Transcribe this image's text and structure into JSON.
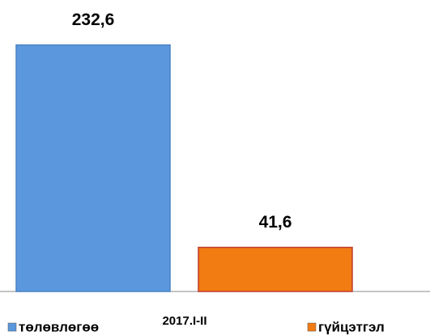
{
  "chart_data": {
    "type": "bar",
    "categories": [
      "2017.I-II"
    ],
    "series": [
      {
        "name": "төлөвлөгөө",
        "color": "#5a97dd",
        "values": [
          232.6
        ],
        "value_labels": [
          "232,6"
        ]
      },
      {
        "name": "гүйцэтгэл",
        "color": "#f27b12",
        "values": [
          41.6
        ],
        "value_labels": [
          "41,6"
        ]
      }
    ],
    "ylim": [
      0,
      275
    ]
  }
}
